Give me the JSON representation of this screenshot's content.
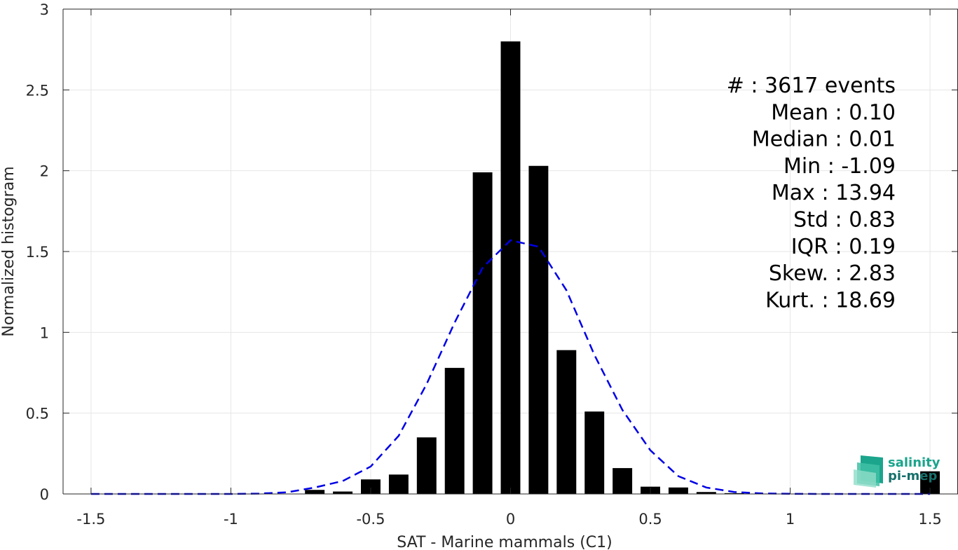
{
  "chart_data": {
    "type": "bar",
    "xlabel": "SAT - Marine mammals (C1)",
    "ylabel": "Normalized histogram",
    "xlim": [
      -1.6,
      1.6
    ],
    "ylim": [
      0,
      3
    ],
    "grid": true,
    "xticks": [
      -1.5,
      -1,
      -0.5,
      0,
      0.5,
      1,
      1.5
    ],
    "xtick_labels": [
      "-1.5",
      "-1",
      "-0.5",
      "0",
      "0.5",
      "1",
      "1.5"
    ],
    "yticks": [
      0,
      0.5,
      1,
      1.5,
      2,
      2.5,
      3
    ],
    "ytick_labels": [
      "0",
      "0.5",
      "1",
      "1.5",
      "2",
      "2.5",
      "3"
    ],
    "bar_width": 0.07,
    "series": [
      {
        "kind": "histogram",
        "color": "#000000",
        "x": [
          -1.5,
          -1.4,
          -1.3,
          -1.2,
          -1.1,
          -1.0,
          -0.9,
          -0.8,
          -0.7,
          -0.6,
          -0.5,
          -0.4,
          -0.3,
          -0.2,
          -0.1,
          0.0,
          0.1,
          0.2,
          0.3,
          0.4,
          0.5,
          0.6,
          0.7,
          0.8,
          0.9,
          1.0,
          1.1,
          1.2,
          1.3,
          1.4,
          1.5
        ],
        "values": [
          0,
          0,
          0,
          0,
          0,
          0,
          0,
          0,
          0.025,
          0.015,
          0.09,
          0.12,
          0.35,
          0.78,
          1.99,
          2.8,
          2.03,
          0.89,
          0.51,
          0.16,
          0.045,
          0.04,
          0.012,
          0.005,
          0,
          0,
          0,
          0,
          0,
          0,
          0.14
        ]
      },
      {
        "kind": "fit-curve",
        "style": "dashed",
        "color": "#0000e6",
        "x": [
          -1.5,
          -1.4,
          -1.3,
          -1.2,
          -1.1,
          -1.0,
          -0.9,
          -0.8,
          -0.7,
          -0.6,
          -0.5,
          -0.4,
          -0.3,
          -0.2,
          -0.1,
          0.0,
          0.1,
          0.2,
          0.3,
          0.4,
          0.5,
          0.6,
          0.7,
          0.8,
          0.9,
          1.0,
          1.1,
          1.2,
          1.3,
          1.4,
          1.5
        ],
        "values": [
          0,
          0,
          0,
          0,
          0,
          0,
          0.002,
          0.01,
          0.04,
          0.08,
          0.17,
          0.36,
          0.68,
          1.06,
          1.4,
          1.57,
          1.53,
          1.26,
          0.86,
          0.52,
          0.27,
          0.11,
          0.04,
          0.012,
          0.003,
          0.001,
          0,
          0,
          0,
          0,
          0
        ]
      }
    ]
  },
  "stats": [
    "#  : 3617 events",
    "Mean : 0.10",
    "Median : 0.01",
    "Min : -1.09",
    "Max : 13.94",
    "Std : 0.83",
    "IQR : 0.19",
    "Skew. : 2.83",
    "Kurt. : 18.69"
  ],
  "logo": {
    "line1": "salinity",
    "line2": "pi-mep",
    "color1": "#1aa58c",
    "color2": "#16706b"
  }
}
